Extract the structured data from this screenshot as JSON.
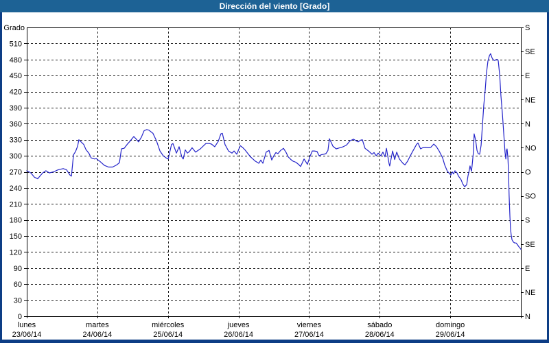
{
  "title": "Dirección del viento [Grado]",
  "colors": {
    "titlebar_bg": "#1d6295",
    "titlebar_text": "#ffffff",
    "window_border": "#0d3d85",
    "plot_bg": "#ffffff",
    "axis": "#000000",
    "grid": "#1a1a1a",
    "line": "#2323c9",
    "label_text": "#000000"
  },
  "chart_data": {
    "type": "line",
    "title": "Dirección del viento [Grado]",
    "ylabel_left": "Grado",
    "y_min": 0,
    "y_max": 540,
    "y_tick_step": 30,
    "grid": "dashed",
    "x_total_hours": 168,
    "x_days": [
      {
        "weekday": "lunes",
        "date": "23/06/14"
      },
      {
        "weekday": "martes",
        "date": "24/06/14"
      },
      {
        "weekday": "miércoles",
        "date": "25/06/14"
      },
      {
        "weekday": "jueves",
        "date": "26/06/14"
      },
      {
        "weekday": "viernes",
        "date": "27/06/14"
      },
      {
        "weekday": "sábado",
        "date": "28/06/14"
      },
      {
        "weekday": "domingo",
        "date": "29/06/14"
      }
    ],
    "right_axis_labels": [
      {
        "value": 0,
        "label": "N"
      },
      {
        "value": 45,
        "label": "NE"
      },
      {
        "value": 90,
        "label": "E"
      },
      {
        "value": 135,
        "label": "SE"
      },
      {
        "value": 180,
        "label": "S"
      },
      {
        "value": 225,
        "label": "SO"
      },
      {
        "value": 270,
        "label": "O"
      },
      {
        "value": 315,
        "label": "NO"
      },
      {
        "value": 360,
        "label": "N"
      },
      {
        "value": 405,
        "label": "NE"
      },
      {
        "value": 450,
        "label": "E"
      },
      {
        "value": 495,
        "label": "SE"
      },
      {
        "value": 540,
        "label": "S"
      }
    ],
    "series": [
      {
        "name": "Dirección del viento",
        "color": "#2323c9",
        "points": [
          [
            0,
            272
          ],
          [
            1.4,
            268
          ],
          [
            2.6,
            260
          ],
          [
            3.7,
            257
          ],
          [
            5.4,
            268
          ],
          [
            6.5,
            272
          ],
          [
            7.7,
            268
          ],
          [
            9.1,
            270
          ],
          [
            10.7,
            274
          ],
          [
            12.4,
            276
          ],
          [
            13.5,
            274
          ],
          [
            14.7,
            264
          ],
          [
            15.2,
            262
          ],
          [
            15.9,
            302
          ],
          [
            16.6,
            308
          ],
          [
            17.3,
            318
          ],
          [
            17.7,
            330
          ],
          [
            19.4,
            321
          ],
          [
            20.1,
            312
          ],
          [
            21.2,
            304
          ],
          [
            21.9,
            296
          ],
          [
            23.1,
            294
          ],
          [
            23.6,
            295
          ],
          [
            25,
            289
          ],
          [
            26.4,
            282
          ],
          [
            27.8,
            279
          ],
          [
            29.2,
            279
          ],
          [
            30.6,
            283
          ],
          [
            31.5,
            287
          ],
          [
            32.2,
            313
          ],
          [
            33.1,
            314
          ],
          [
            34.1,
            321
          ],
          [
            35.2,
            328
          ],
          [
            36.4,
            336
          ],
          [
            37.1,
            332
          ],
          [
            38,
            326
          ],
          [
            39,
            335
          ],
          [
            39.9,
            347
          ],
          [
            40.8,
            349
          ],
          [
            41.5,
            348
          ],
          [
            42.9,
            342
          ],
          [
            44.1,
            328
          ],
          [
            45.3,
            309
          ],
          [
            46.4,
            300
          ],
          [
            47.4,
            296
          ],
          [
            48.1,
            294
          ],
          [
            49.2,
            321
          ],
          [
            49.7,
            323
          ],
          [
            50.9,
            305
          ],
          [
            51.8,
            317
          ],
          [
            52.7,
            298
          ],
          [
            53.2,
            294
          ],
          [
            53.9,
            311
          ],
          [
            54.6,
            305
          ],
          [
            55.3,
            308
          ],
          [
            56.2,
            315
          ],
          [
            57.4,
            307
          ],
          [
            59,
            313
          ],
          [
            60.9,
            323
          ],
          [
            62.1,
            323
          ],
          [
            62.8,
            322
          ],
          [
            63.9,
            317
          ],
          [
            65.1,
            327
          ],
          [
            66,
            341
          ],
          [
            66.5,
            342
          ],
          [
            67.4,
            321
          ],
          [
            68.6,
            309
          ],
          [
            69.8,
            305
          ],
          [
            70.5,
            309
          ],
          [
            71.4,
            303
          ],
          [
            72.6,
            319
          ],
          [
            73.5,
            315
          ],
          [
            74.2,
            311
          ],
          [
            76.1,
            298
          ],
          [
            77.7,
            290
          ],
          [
            78.9,
            286
          ],
          [
            79.6,
            292
          ],
          [
            80.3,
            286
          ],
          [
            81.4,
            307
          ],
          [
            82.4,
            310
          ],
          [
            83.3,
            292
          ],
          [
            84,
            300
          ],
          [
            84.7,
            306
          ],
          [
            85.4,
            304
          ],
          [
            86.3,
            310
          ],
          [
            87.3,
            314
          ],
          [
            88.2,
            306
          ],
          [
            88.9,
            298
          ],
          [
            89.8,
            293
          ],
          [
            90.5,
            290
          ],
          [
            91.5,
            288
          ],
          [
            92.4,
            284
          ],
          [
            93.1,
            280
          ],
          [
            94.3,
            294
          ],
          [
            95,
            288
          ],
          [
            95.4,
            284
          ],
          [
            96.4,
            300
          ],
          [
            97.1,
            309
          ],
          [
            97.8,
            309
          ],
          [
            98.7,
            308
          ],
          [
            99.4,
            300
          ],
          [
            100.1,
            302
          ],
          [
            101,
            303
          ],
          [
            101.7,
            304
          ],
          [
            102.4,
            310
          ],
          [
            102.9,
            332
          ],
          [
            103.6,
            324
          ],
          [
            104.1,
            318
          ],
          [
            105.2,
            313
          ],
          [
            106.4,
            315
          ],
          [
            107.6,
            317
          ],
          [
            108.7,
            320
          ],
          [
            109.9,
            328
          ],
          [
            111.1,
            331
          ],
          [
            112,
            328
          ],
          [
            112.7,
            326
          ],
          [
            113.4,
            329
          ],
          [
            114.1,
            330
          ],
          [
            115,
            314
          ],
          [
            116.2,
            309
          ],
          [
            117.4,
            303
          ],
          [
            118.1,
            306
          ],
          [
            118.8,
            300
          ],
          [
            119.5,
            305
          ],
          [
            120.4,
            300
          ],
          [
            121.1,
            307
          ],
          [
            121.8,
            298
          ],
          [
            122.3,
            314
          ],
          [
            123.2,
            285
          ],
          [
            123.4,
            281
          ],
          [
            124.4,
            309
          ],
          [
            125.1,
            293
          ],
          [
            125.8,
            307
          ],
          [
            126.7,
            294
          ],
          [
            127.9,
            286
          ],
          [
            128.6,
            283
          ],
          [
            129.5,
            290
          ],
          [
            130.2,
            298
          ],
          [
            131.4,
            310
          ],
          [
            132.5,
            321
          ],
          [
            133,
            324
          ],
          [
            133.9,
            313
          ],
          [
            134.6,
            315
          ],
          [
            135.6,
            316
          ],
          [
            136.5,
            315
          ],
          [
            137.4,
            316
          ],
          [
            138.4,
            322
          ],
          [
            139.3,
            317
          ],
          [
            140.2,
            309
          ],
          [
            141.4,
            296
          ],
          [
            142.1,
            283
          ],
          [
            143,
            271
          ],
          [
            143.7,
            267
          ],
          [
            144.2,
            264
          ],
          [
            144.7,
            270
          ],
          [
            145.1,
            266
          ],
          [
            145.6,
            272
          ],
          [
            146.3,
            268
          ],
          [
            146.8,
            262
          ],
          [
            147.7,
            255
          ],
          [
            148.2,
            248
          ],
          [
            148.9,
            242
          ],
          [
            149.6,
            246
          ],
          [
            150,
            262
          ],
          [
            150.5,
            274
          ],
          [
            150.7,
            281
          ],
          [
            151.2,
            271
          ],
          [
            151.4,
            281
          ],
          [
            151.9,
            309
          ],
          [
            152.1,
            341
          ],
          [
            152.6,
            330
          ],
          [
            153.1,
            310
          ],
          [
            153.5,
            304
          ],
          [
            154,
            303
          ],
          [
            154.5,
            320
          ],
          [
            154.9,
            355
          ],
          [
            155.4,
            395
          ],
          [
            155.9,
            424
          ],
          [
            156.3,
            455
          ],
          [
            156.8,
            477
          ],
          [
            157.3,
            487
          ],
          [
            157.7,
            491
          ],
          [
            158.2,
            483
          ],
          [
            158.7,
            479
          ],
          [
            159.1,
            478
          ],
          [
            159.6,
            480
          ],
          [
            160.1,
            480
          ],
          [
            160.3,
            478
          ],
          [
            160.8,
            452
          ],
          [
            161.2,
            413
          ],
          [
            161.7,
            380
          ],
          [
            162.2,
            341
          ],
          [
            162.6,
            307
          ],
          [
            162.9,
            294
          ],
          [
            163.1,
            310
          ],
          [
            163.3,
            313
          ],
          [
            163.6,
            297
          ],
          [
            163.8,
            270
          ],
          [
            164,
            225
          ],
          [
            164.3,
            185
          ],
          [
            164.5,
            163
          ],
          [
            164.7,
            152
          ],
          [
            165,
            143
          ],
          [
            165.4,
            139
          ],
          [
            165.9,
            137
          ],
          [
            166.4,
            137
          ],
          [
            166.8,
            134
          ],
          [
            167.3,
            130
          ],
          [
            167.8,
            127
          ],
          [
            168,
            125
          ]
        ]
      }
    ]
  }
}
